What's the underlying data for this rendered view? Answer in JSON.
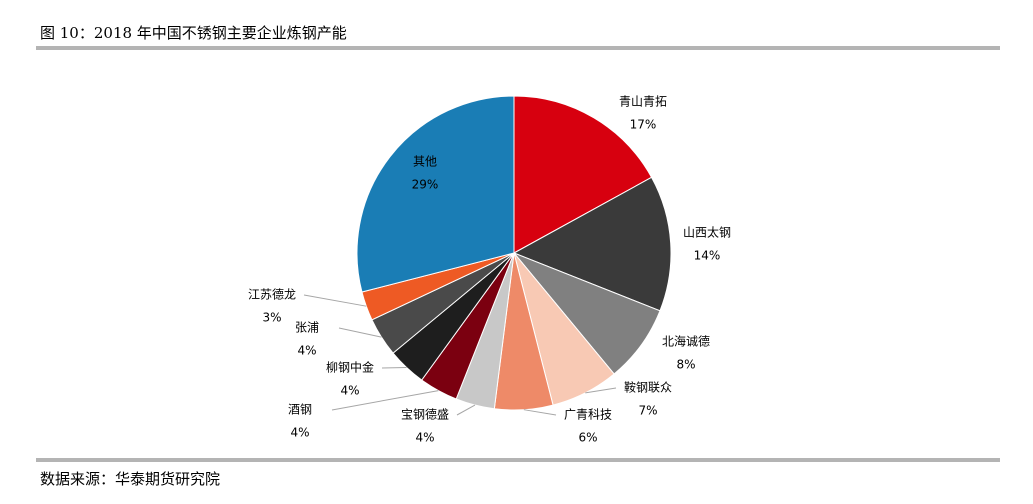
{
  "chart_data": {
    "type": "pie",
    "title": "图 10：2018 年中国不锈钢主要企业炼钢产能",
    "source": "数据来源：华泰期货研究院",
    "categories": [
      "青山青拓",
      "山西太钢",
      "北海诚德",
      "鞍钢联众",
      "广青科技",
      "宝钢德盛",
      "酒钢",
      "柳钢中金",
      "张浦",
      "江苏德龙",
      "其他"
    ],
    "values": [
      17,
      14,
      8,
      7,
      6,
      4,
      4,
      4,
      4,
      3,
      29
    ],
    "value_labels": [
      "17%",
      "14%",
      "8%",
      "7%",
      "6%",
      "4%",
      "4%",
      "4%",
      "4%",
      "3%",
      "29%"
    ],
    "colors": [
      "#d7000f",
      "#3a3a3a",
      "#808080",
      "#f8c9b4",
      "#ee8a68",
      "#c8c8c8",
      "#7b0010",
      "#1e1e1e",
      "#4a4a4a",
      "#ee5a24",
      "#1a7db5"
    ]
  }
}
